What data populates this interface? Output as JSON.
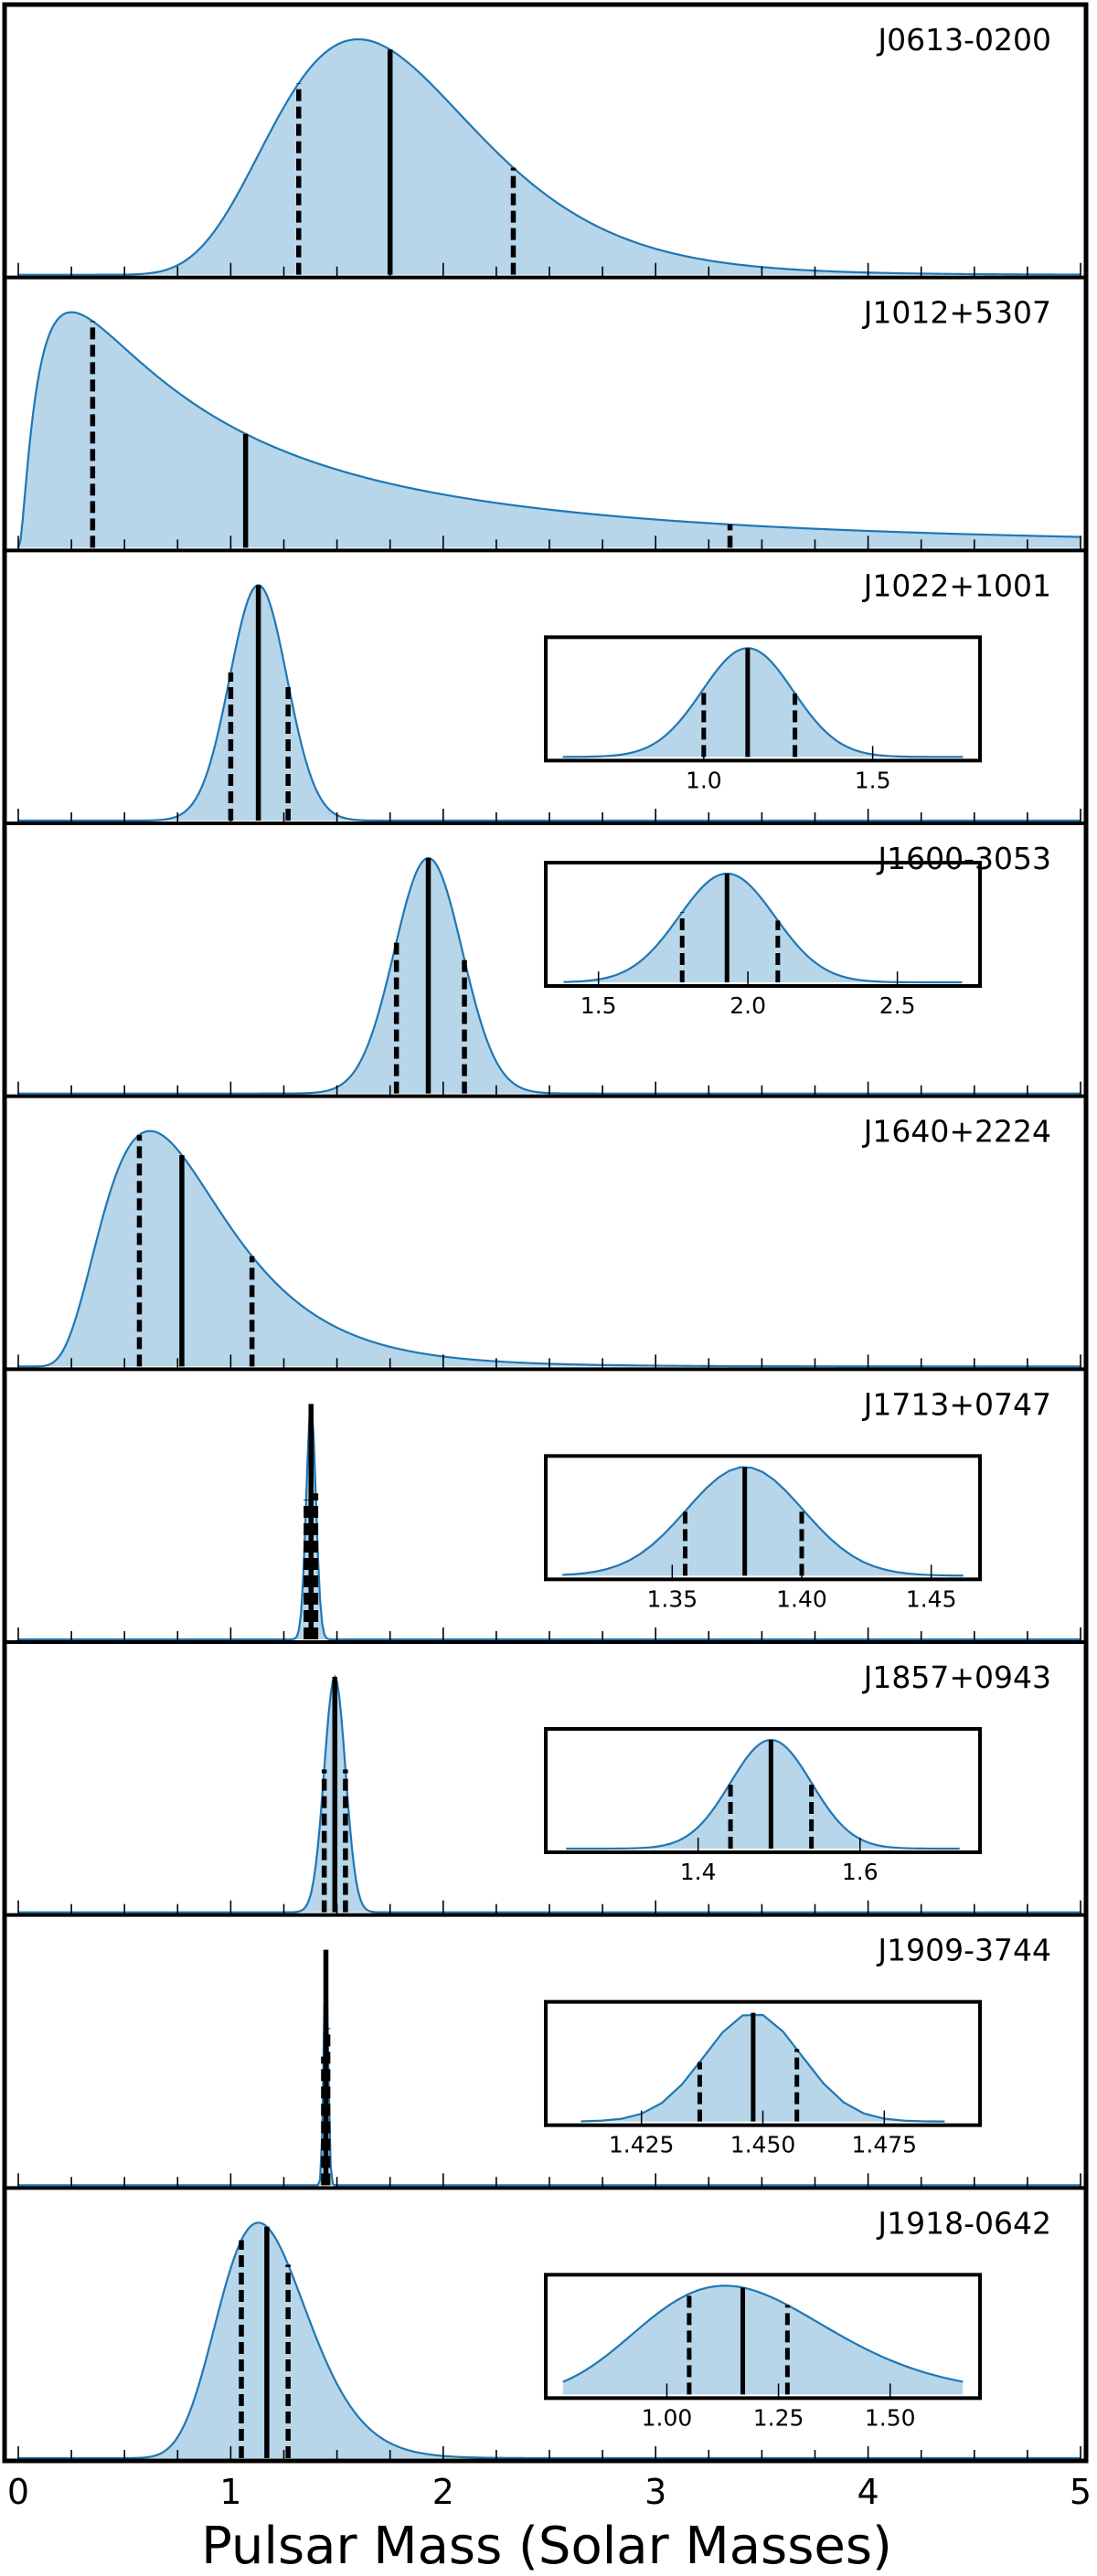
{
  "figure": {
    "xlabel": "Pulsar Mass (Solar Masses)",
    "x_ticks": [
      "0",
      "1",
      "2",
      "3",
      "4",
      "5"
    ],
    "xlim": [
      0,
      5
    ],
    "line_color": "#1f77b4",
    "fill_color": "#b8d6ea"
  },
  "chart_data": [
    {
      "type": "area",
      "pulsar": "J0613-0200",
      "shape": "lognormal",
      "peak_mass": 1.6,
      "median": 1.75,
      "interval_68": [
        1.32,
        2.33
      ],
      "inset": null
    },
    {
      "type": "area",
      "pulsar": "J1012+5307",
      "shape": "lognormal",
      "peak_mass": 0.25,
      "median": 1.07,
      "interval_68": [
        0.35,
        3.35
      ],
      "inset": null
    },
    {
      "type": "area",
      "pulsar": "J1022+1001",
      "shape": "normal",
      "peak_mass": 1.13,
      "median": 1.13,
      "interval_68": [
        1.0,
        1.27
      ],
      "inset": {
        "xlim": [
          0.6,
          1.75
        ],
        "ticks": [
          1.0,
          1.5
        ],
        "tick_labels": [
          "1.0",
          "1.5"
        ]
      }
    },
    {
      "type": "area",
      "pulsar": "J1600-3053",
      "shape": "normal",
      "peak_mass": 1.93,
      "median": 1.93,
      "interval_68": [
        1.78,
        2.1
      ],
      "inset": {
        "xlim": [
          1.4,
          2.7
        ],
        "ticks": [
          1.5,
          2.0,
          2.5
        ],
        "tick_labels": [
          "1.5",
          "2.0",
          "2.5"
        ]
      }
    },
    {
      "type": "area",
      "pulsar": "J1640+2224",
      "shape": "lognormal",
      "peak_mass": 0.62,
      "median": 0.77,
      "interval_68": [
        0.57,
        1.1
      ],
      "inset": null
    },
    {
      "type": "area",
      "pulsar": "J1713+0747",
      "shape": "normal",
      "peak_mass": 1.375,
      "median": 1.378,
      "interval_68": [
        1.355,
        1.4
      ],
      "inset": {
        "xlim": [
          1.31,
          1.46
        ],
        "ticks": [
          1.35,
          1.4,
          1.45
        ],
        "tick_labels": [
          "1.35",
          "1.40",
          "1.45"
        ]
      }
    },
    {
      "type": "area",
      "pulsar": "J1857+0943",
      "shape": "normal",
      "peak_mass": 1.49,
      "median": 1.49,
      "interval_68": [
        1.44,
        1.54
      ],
      "inset": {
        "xlim": [
          1.24,
          1.72
        ],
        "ticks": [
          1.4,
          1.6
        ],
        "tick_labels": [
          "1.4",
          "1.6"
        ]
      }
    },
    {
      "type": "area",
      "pulsar": "J1909-3744",
      "shape": "normal",
      "peak_mass": 1.448,
      "median": 1.448,
      "interval_68": [
        1.437,
        1.457
      ],
      "inset": {
        "xlim": [
          1.41,
          1.49
        ],
        "ticks": [
          1.425,
          1.45,
          1.475
        ],
        "tick_labels": [
          "1.425",
          "1.450",
          "1.475"
        ]
      }
    },
    {
      "type": "area",
      "pulsar": "J1918-0642",
      "shape": "lognormal",
      "peak_mass": 1.13,
      "median": 1.17,
      "interval_68": [
        1.05,
        1.27
      ],
      "inset": {
        "xlim": [
          0.78,
          1.65
        ],
        "ticks": [
          1.0,
          1.25,
          1.5
        ],
        "tick_labels": [
          "1.00",
          "1.25",
          "1.50"
        ]
      }
    }
  ]
}
